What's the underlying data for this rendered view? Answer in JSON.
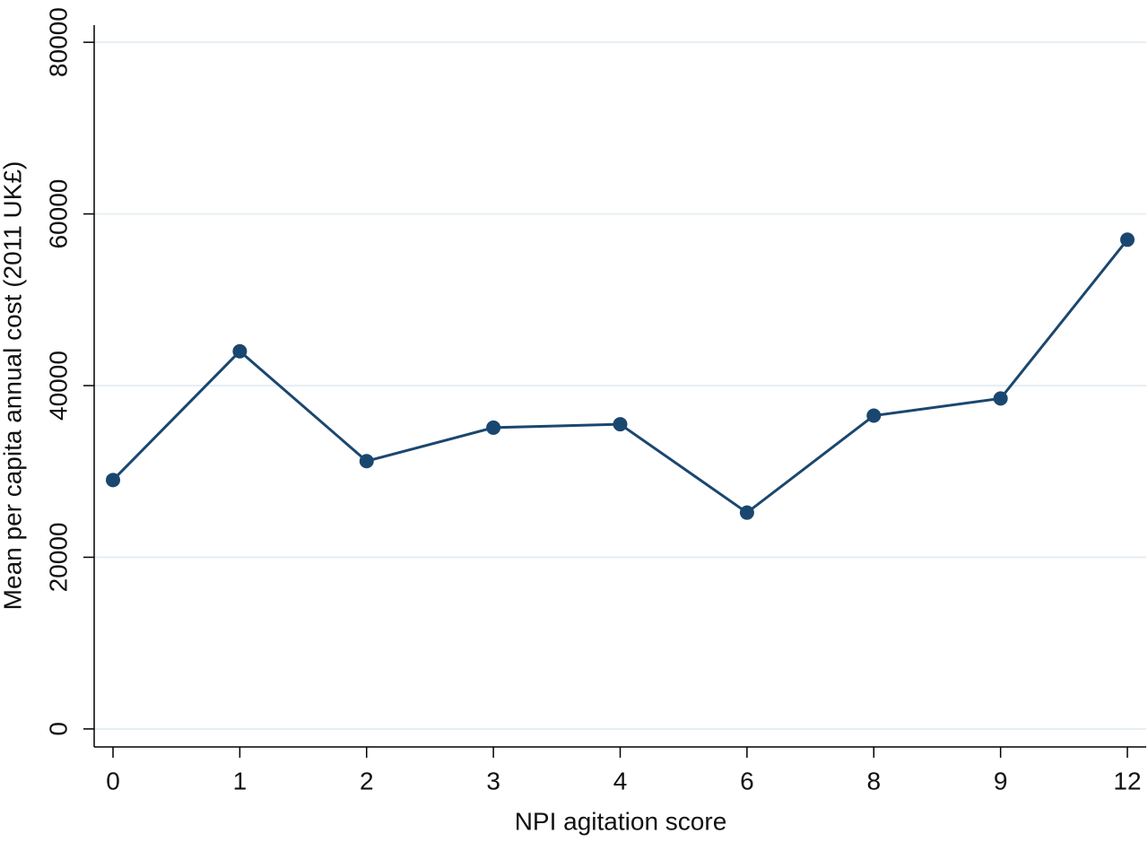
{
  "chart_data": {
    "type": "line",
    "xlabel": "NPI agitation score",
    "ylabel": "Mean per capita annual cost (2011 UK£)",
    "categories": [
      "0",
      "1",
      "2",
      "3",
      "4",
      "6",
      "8",
      "9",
      "12"
    ],
    "series": [
      {
        "name": null,
        "color": "#1a476f",
        "values": [
          29000,
          44000,
          31200,
          35100,
          35500,
          25200,
          36500,
          38500,
          57000
        ]
      }
    ],
    "ylim": [
      -2100,
      82000
    ],
    "yticks": [
      0,
      20000,
      40000,
      60000,
      80000
    ],
    "grid": true
  }
}
